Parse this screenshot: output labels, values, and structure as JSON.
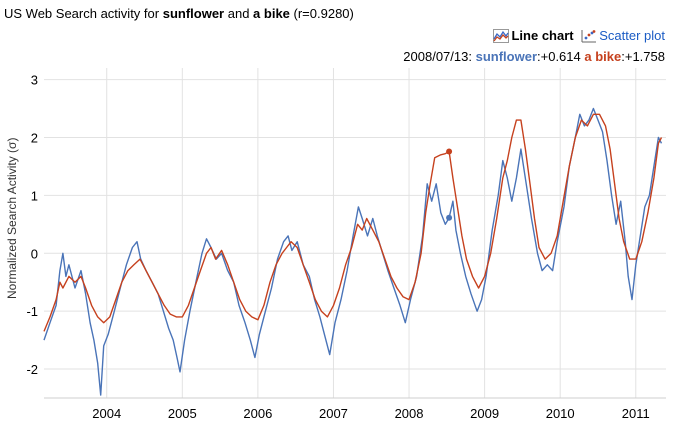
{
  "title": {
    "prefix": "US Web Search activity for ",
    "term1": "sunflower",
    "mid": " and ",
    "term2": "a bike",
    "suffix": " (r=0.9280)"
  },
  "toggles": {
    "line_label": "Line chart",
    "scatter_label": "Scatter plot"
  },
  "readout": {
    "date": "2008/07/13:",
    "s1_name": "sunflower",
    "s1_value": ":+0.614",
    "s2_name": "a bike",
    "s2_value": ":+1.758"
  },
  "chart_data": {
    "type": "line",
    "ylabel": "Normalized Search Activity (σ)",
    "ylim": [
      -2.5,
      3.2
    ],
    "xlim": [
      2003.17,
      2011.4
    ],
    "yticks": [
      -2,
      -1,
      0,
      1,
      2,
      3
    ],
    "xticks": [
      {
        "label": "2004",
        "x": 2004.0
      },
      {
        "label": "2005",
        "x": 2005.0
      },
      {
        "label": "2006",
        "x": 2006.0
      },
      {
        "label": "2007",
        "x": 2007.0
      },
      {
        "label": "2008",
        "x": 2008.0
      },
      {
        "label": "2009",
        "x": 2009.0
      },
      {
        "label": "2010",
        "x": 2010.0
      },
      {
        "label": "2011",
        "x": 2011.0
      }
    ],
    "grid": true,
    "highlight": {
      "x": 2008.53,
      "values": [
        0.614,
        1.758
      ]
    },
    "series": [
      {
        "name": "sunflower",
        "color": "#4a74b8",
        "points": [
          [
            2003.17,
            -1.5
          ],
          [
            2003.25,
            -1.2
          ],
          [
            2003.33,
            -0.9
          ],
          [
            2003.38,
            -0.3
          ],
          [
            2003.42,
            0.0
          ],
          [
            2003.46,
            -0.4
          ],
          [
            2003.5,
            -0.2
          ],
          [
            2003.58,
            -0.6
          ],
          [
            2003.66,
            -0.3
          ],
          [
            2003.72,
            -0.7
          ],
          [
            2003.78,
            -1.2
          ],
          [
            2003.83,
            -1.5
          ],
          [
            2003.88,
            -1.9
          ],
          [
            2003.92,
            -2.45
          ],
          [
            2003.96,
            -1.6
          ],
          [
            2004.02,
            -1.4
          ],
          [
            2004.1,
            -1.0
          ],
          [
            2004.18,
            -0.6
          ],
          [
            2004.26,
            -0.2
          ],
          [
            2004.34,
            0.1
          ],
          [
            2004.4,
            0.2
          ],
          [
            2004.45,
            -0.1
          ],
          [
            2004.52,
            -0.3
          ],
          [
            2004.6,
            -0.5
          ],
          [
            2004.68,
            -0.7
          ],
          [
            2004.75,
            -1.0
          ],
          [
            2004.82,
            -1.3
          ],
          [
            2004.88,
            -1.5
          ],
          [
            2004.93,
            -1.8
          ],
          [
            2004.97,
            -2.05
          ],
          [
            2005.03,
            -1.5
          ],
          [
            2005.1,
            -1.0
          ],
          [
            2005.18,
            -0.5
          ],
          [
            2005.26,
            0.0
          ],
          [
            2005.32,
            0.25
          ],
          [
            2005.38,
            0.1
          ],
          [
            2005.45,
            -0.1
          ],
          [
            2005.52,
            0.0
          ],
          [
            2005.6,
            -0.3
          ],
          [
            2005.68,
            -0.5
          ],
          [
            2005.75,
            -0.9
          ],
          [
            2005.83,
            -1.2
          ],
          [
            2005.9,
            -1.5
          ],
          [
            2005.96,
            -1.8
          ],
          [
            2006.02,
            -1.4
          ],
          [
            2006.1,
            -1.0
          ],
          [
            2006.18,
            -0.6
          ],
          [
            2006.26,
            -0.1
          ],
          [
            2006.34,
            0.2
          ],
          [
            2006.4,
            0.3
          ],
          [
            2006.45,
            0.05
          ],
          [
            2006.52,
            0.2
          ],
          [
            2006.6,
            -0.2
          ],
          [
            2006.68,
            -0.4
          ],
          [
            2006.75,
            -0.8
          ],
          [
            2006.82,
            -1.1
          ],
          [
            2006.88,
            -1.4
          ],
          [
            2006.95,
            -1.75
          ],
          [
            2007.02,
            -1.2
          ],
          [
            2007.1,
            -0.8
          ],
          [
            2007.18,
            -0.3
          ],
          [
            2007.26,
            0.3
          ],
          [
            2007.33,
            0.8
          ],
          [
            2007.38,
            0.6
          ],
          [
            2007.45,
            0.3
          ],
          [
            2007.52,
            0.6
          ],
          [
            2007.58,
            0.3
          ],
          [
            2007.65,
            0.0
          ],
          [
            2007.72,
            -0.3
          ],
          [
            2007.8,
            -0.6
          ],
          [
            2007.88,
            -0.9
          ],
          [
            2007.95,
            -1.2
          ],
          [
            2008.02,
            -0.8
          ],
          [
            2008.1,
            -0.4
          ],
          [
            2008.18,
            0.3
          ],
          [
            2008.24,
            1.2
          ],
          [
            2008.3,
            0.9
          ],
          [
            2008.36,
            1.2
          ],
          [
            2008.42,
            0.7
          ],
          [
            2008.48,
            0.5
          ],
          [
            2008.53,
            0.61
          ],
          [
            2008.58,
            0.9
          ],
          [
            2008.62,
            0.4
          ],
          [
            2008.68,
            0.0
          ],
          [
            2008.75,
            -0.4
          ],
          [
            2008.82,
            -0.7
          ],
          [
            2008.9,
            -1.0
          ],
          [
            2008.96,
            -0.8
          ],
          [
            2009.02,
            -0.4
          ],
          [
            2009.1,
            0.4
          ],
          [
            2009.18,
            1.0
          ],
          [
            2009.24,
            1.6
          ],
          [
            2009.3,
            1.3
          ],
          [
            2009.36,
            0.9
          ],
          [
            2009.42,
            1.3
          ],
          [
            2009.48,
            1.8
          ],
          [
            2009.55,
            1.2
          ],
          [
            2009.62,
            0.6
          ],
          [
            2009.7,
            0.0
          ],
          [
            2009.76,
            -0.3
          ],
          [
            2009.83,
            -0.2
          ],
          [
            2009.9,
            -0.3
          ],
          [
            2009.96,
            0.2
          ],
          [
            2010.05,
            0.8
          ],
          [
            2010.12,
            1.5
          ],
          [
            2010.2,
            2.0
          ],
          [
            2010.26,
            2.4
          ],
          [
            2010.32,
            2.2
          ],
          [
            2010.38,
            2.3
          ],
          [
            2010.44,
            2.5
          ],
          [
            2010.5,
            2.3
          ],
          [
            2010.56,
            2.1
          ],
          [
            2010.62,
            1.6
          ],
          [
            2010.68,
            1.0
          ],
          [
            2010.74,
            0.5
          ],
          [
            2010.8,
            0.9
          ],
          [
            2010.86,
            0.2
          ],
          [
            2010.9,
            -0.4
          ],
          [
            2010.95,
            -0.8
          ],
          [
            2011.0,
            -0.2
          ],
          [
            2011.06,
            0.3
          ],
          [
            2011.12,
            0.8
          ],
          [
            2011.18,
            1.0
          ],
          [
            2011.24,
            1.5
          ],
          [
            2011.3,
            2.0
          ],
          [
            2011.34,
            1.9
          ]
        ]
      },
      {
        "name": "a bike",
        "color": "#c6411e",
        "points": [
          [
            2003.17,
            -1.35
          ],
          [
            2003.25,
            -1.1
          ],
          [
            2003.33,
            -0.8
          ],
          [
            2003.38,
            -0.5
          ],
          [
            2003.42,
            -0.6
          ],
          [
            2003.5,
            -0.4
          ],
          [
            2003.58,
            -0.5
          ],
          [
            2003.66,
            -0.4
          ],
          [
            2003.72,
            -0.6
          ],
          [
            2003.8,
            -0.9
          ],
          [
            2003.88,
            -1.1
          ],
          [
            2003.96,
            -1.2
          ],
          [
            2004.04,
            -1.1
          ],
          [
            2004.12,
            -0.8
          ],
          [
            2004.2,
            -0.5
          ],
          [
            2004.28,
            -0.3
          ],
          [
            2004.36,
            -0.2
          ],
          [
            2004.44,
            -0.1
          ],
          [
            2004.52,
            -0.3
          ],
          [
            2004.6,
            -0.5
          ],
          [
            2004.68,
            -0.7
          ],
          [
            2004.76,
            -0.9
          ],
          [
            2004.84,
            -1.05
          ],
          [
            2004.92,
            -1.1
          ],
          [
            2005.0,
            -1.1
          ],
          [
            2005.08,
            -0.9
          ],
          [
            2005.16,
            -0.6
          ],
          [
            2005.24,
            -0.3
          ],
          [
            2005.32,
            0.0
          ],
          [
            2005.38,
            0.1
          ],
          [
            2005.44,
            -0.1
          ],
          [
            2005.52,
            0.05
          ],
          [
            2005.6,
            -0.2
          ],
          [
            2005.68,
            -0.5
          ],
          [
            2005.76,
            -0.8
          ],
          [
            2005.84,
            -1.0
          ],
          [
            2005.92,
            -1.1
          ],
          [
            2006.0,
            -1.15
          ],
          [
            2006.08,
            -0.9
          ],
          [
            2006.16,
            -0.5
          ],
          [
            2006.24,
            -0.2
          ],
          [
            2006.32,
            0.0
          ],
          [
            2006.38,
            0.1
          ],
          [
            2006.44,
            0.2
          ],
          [
            2006.52,
            0.1
          ],
          [
            2006.6,
            -0.2
          ],
          [
            2006.68,
            -0.5
          ],
          [
            2006.76,
            -0.8
          ],
          [
            2006.84,
            -1.0
          ],
          [
            2006.92,
            -1.1
          ],
          [
            2007.0,
            -0.9
          ],
          [
            2007.08,
            -0.6
          ],
          [
            2007.16,
            -0.2
          ],
          [
            2007.24,
            0.1
          ],
          [
            2007.32,
            0.5
          ],
          [
            2007.38,
            0.4
          ],
          [
            2007.44,
            0.6
          ],
          [
            2007.52,
            0.4
          ],
          [
            2007.6,
            0.2
          ],
          [
            2007.68,
            -0.1
          ],
          [
            2007.76,
            -0.4
          ],
          [
            2007.84,
            -0.6
          ],
          [
            2007.92,
            -0.75
          ],
          [
            2008.0,
            -0.8
          ],
          [
            2008.08,
            -0.5
          ],
          [
            2008.16,
            0.0
          ],
          [
            2008.22,
            0.7
          ],
          [
            2008.28,
            1.2
          ],
          [
            2008.34,
            1.65
          ],
          [
            2008.42,
            1.7
          ],
          [
            2008.48,
            1.72
          ],
          [
            2008.53,
            1.76
          ],
          [
            2008.58,
            1.3
          ],
          [
            2008.64,
            0.8
          ],
          [
            2008.7,
            0.3
          ],
          [
            2008.76,
            -0.1
          ],
          [
            2008.84,
            -0.4
          ],
          [
            2008.92,
            -0.6
          ],
          [
            2009.0,
            -0.4
          ],
          [
            2009.08,
            0.0
          ],
          [
            2009.16,
            0.6
          ],
          [
            2009.24,
            1.3
          ],
          [
            2009.3,
            1.6
          ],
          [
            2009.36,
            2.0
          ],
          [
            2009.42,
            2.3
          ],
          [
            2009.48,
            2.3
          ],
          [
            2009.54,
            1.8
          ],
          [
            2009.6,
            1.2
          ],
          [
            2009.66,
            0.6
          ],
          [
            2009.72,
            0.1
          ],
          [
            2009.8,
            -0.1
          ],
          [
            2009.88,
            0.0
          ],
          [
            2009.96,
            0.3
          ],
          [
            2010.04,
            0.9
          ],
          [
            2010.12,
            1.5
          ],
          [
            2010.2,
            2.0
          ],
          [
            2010.28,
            2.3
          ],
          [
            2010.36,
            2.2
          ],
          [
            2010.44,
            2.4
          ],
          [
            2010.52,
            2.4
          ],
          [
            2010.6,
            2.2
          ],
          [
            2010.66,
            1.8
          ],
          [
            2010.72,
            1.2
          ],
          [
            2010.78,
            0.6
          ],
          [
            2010.84,
            0.2
          ],
          [
            2010.92,
            -0.1
          ],
          [
            2011.0,
            -0.1
          ],
          [
            2011.08,
            0.2
          ],
          [
            2011.16,
            0.7
          ],
          [
            2011.24,
            1.3
          ],
          [
            2011.3,
            1.9
          ],
          [
            2011.34,
            2.0
          ]
        ]
      }
    ]
  }
}
